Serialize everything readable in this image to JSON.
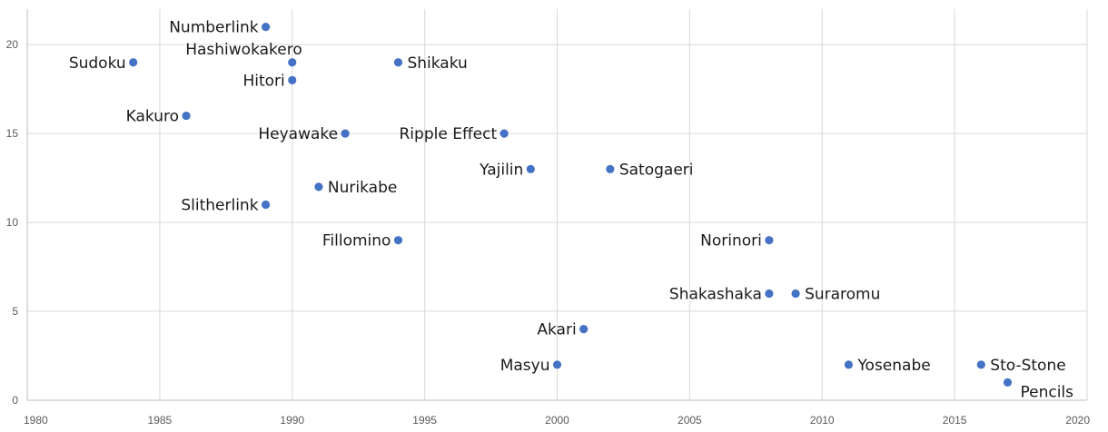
{
  "chart_data": {
    "type": "scatter",
    "title": "",
    "xlabel": "",
    "ylabel": "",
    "xlim": [
      1980,
      2020
    ],
    "ylim": [
      0,
      22
    ],
    "xticks": [
      1980,
      1985,
      1990,
      1995,
      2000,
      2005,
      2010,
      2015,
      2020
    ],
    "yticks": [
      0,
      5,
      10,
      15,
      20
    ],
    "grid": true,
    "marker_color": "#4472C4",
    "points": [
      {
        "label": "Numberlink",
        "x": 1989,
        "y": 21,
        "label_pos": "left"
      },
      {
        "label": "Sudoku",
        "x": 1984,
        "y": 19,
        "label_pos": "left"
      },
      {
        "label": "Hashiwokakero",
        "x": 1990,
        "y": 19,
        "label_pos": "above-left"
      },
      {
        "label": "Shikaku",
        "x": 1994,
        "y": 19,
        "label_pos": "right"
      },
      {
        "label": "Hitori",
        "x": 1990,
        "y": 18,
        "label_pos": "left"
      },
      {
        "label": "Kakuro",
        "x": 1986,
        "y": 16,
        "label_pos": "left"
      },
      {
        "label": "Heyawake",
        "x": 1992,
        "y": 15,
        "label_pos": "left"
      },
      {
        "label": "Ripple Effect",
        "x": 1998,
        "y": 15,
        "label_pos": "left"
      },
      {
        "label": "Yajilin",
        "x": 1999,
        "y": 13,
        "label_pos": "left"
      },
      {
        "label": "Satogaeri",
        "x": 2002,
        "y": 13,
        "label_pos": "right"
      },
      {
        "label": "Nurikabe",
        "x": 1991,
        "y": 12,
        "label_pos": "right"
      },
      {
        "label": "Slitherlink",
        "x": 1989,
        "y": 11,
        "label_pos": "left"
      },
      {
        "label": "Fillomino",
        "x": 1994,
        "y": 9,
        "label_pos": "left"
      },
      {
        "label": "Norinori",
        "x": 2008,
        "y": 9,
        "label_pos": "left"
      },
      {
        "label": "Shakashaka",
        "x": 2008,
        "y": 6,
        "label_pos": "left"
      },
      {
        "label": "Suraromu",
        "x": 2009,
        "y": 6,
        "label_pos": "right"
      },
      {
        "label": "Akari",
        "x": 2001,
        "y": 4,
        "label_pos": "left"
      },
      {
        "label": "Masyu",
        "x": 2000,
        "y": 2,
        "label_pos": "left"
      },
      {
        "label": "Yosenabe",
        "x": 2011,
        "y": 2,
        "label_pos": "right"
      },
      {
        "label": "Sto-Stone",
        "x": 2016,
        "y": 2,
        "label_pos": "right"
      },
      {
        "label": "Pencils",
        "x": 2017,
        "y": 1,
        "label_pos": "below-right"
      }
    ]
  }
}
